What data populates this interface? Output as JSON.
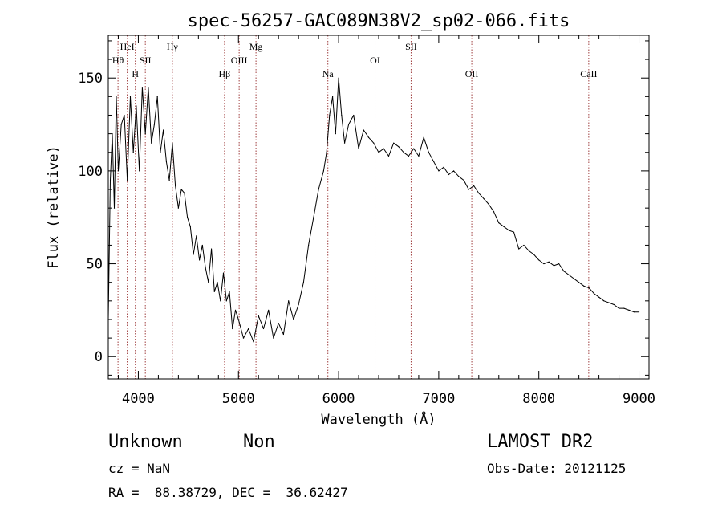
{
  "chart_data": {
    "type": "line",
    "title": "spec-56257-GAC089N38V2_sp02-066.fits",
    "xlabel": "Wavelength (Å)",
    "ylabel": "Flux (relative)",
    "xlim": [
      3700,
      9100
    ],
    "ylim": [
      -12,
      173
    ],
    "xticks": [
      4000,
      5000,
      6000,
      7000,
      8000,
      9000
    ],
    "xtick_labels": [
      "4000",
      "5000",
      "6000",
      "7000",
      "8000",
      "9000"
    ],
    "yticks": [
      0,
      50,
      100,
      150
    ],
    "ytick_labels": [
      "0",
      "50",
      "100",
      "150"
    ],
    "grid": false,
    "series": [
      {
        "color": "#000000",
        "x": [
          3700,
          3720,
          3740,
          3760,
          3780,
          3800,
          3830,
          3860,
          3890,
          3920,
          3950,
          3980,
          4010,
          4040,
          4070,
          4100,
          4130,
          4160,
          4190,
          4220,
          4250,
          4280,
          4310,
          4340,
          4370,
          4400,
          4430,
          4460,
          4490,
          4520,
          4550,
          4580,
          4610,
          4640,
          4670,
          4700,
          4730,
          4760,
          4790,
          4820,
          4850,
          4880,
          4910,
          4940,
          4970,
          5000,
          5050,
          5100,
          5150,
          5200,
          5250,
          5300,
          5350,
          5400,
          5450,
          5500,
          5550,
          5600,
          5650,
          5700,
          5750,
          5800,
          5850,
          5880,
          5910,
          5940,
          5970,
          6000,
          6030,
          6060,
          6100,
          6150,
          6200,
          6250,
          6300,
          6350,
          6400,
          6450,
          6500,
          6550,
          6600,
          6650,
          6700,
          6750,
          6800,
          6850,
          6900,
          6950,
          7000,
          7050,
          7100,
          7150,
          7200,
          7250,
          7300,
          7350,
          7400,
          7450,
          7500,
          7550,
          7600,
          7650,
          7700,
          7750,
          7800,
          7850,
          7900,
          7950,
          8000,
          8050,
          8100,
          8150,
          8200,
          8250,
          8300,
          8350,
          8400,
          8450,
          8500,
          8550,
          8600,
          8650,
          8700,
          8750,
          8800,
          8850,
          8900,
          8950,
          9000
        ],
        "y": [
          20,
          95,
          120,
          80,
          140,
          100,
          125,
          130,
          95,
          140,
          110,
          135,
          100,
          145,
          120,
          145,
          115,
          125,
          140,
          110,
          122,
          105,
          95,
          115,
          92,
          80,
          90,
          88,
          75,
          70,
          55,
          65,
          52,
          60,
          48,
          40,
          58,
          35,
          40,
          30,
          45,
          30,
          35,
          15,
          25,
          20,
          10,
          15,
          8,
          22,
          15,
          25,
          10,
          18,
          12,
          30,
          20,
          28,
          40,
          60,
          75,
          90,
          100,
          110,
          130,
          140,
          120,
          150,
          130,
          115,
          125,
          130,
          112,
          122,
          118,
          115,
          110,
          112,
          108,
          115,
          113,
          110,
          108,
          112,
          108,
          118,
          110,
          105,
          100,
          102,
          98,
          100,
          97,
          95,
          90,
          92,
          88,
          85,
          82,
          78,
          72,
          70,
          68,
          67,
          58,
          60,
          57,
          55,
          52,
          50,
          51,
          49,
          50,
          46,
          44,
          42,
          40,
          38,
          37,
          34,
          32,
          30,
          29,
          28,
          26,
          26,
          25,
          24,
          24
        ]
      }
    ],
    "lines": [
      {
        "label": "Hθ",
        "x": 3797,
        "row": 2
      },
      {
        "label": "HeI",
        "x": 3889,
        "row": 1
      },
      {
        "label": "H",
        "x": 3970,
        "row": 3
      },
      {
        "label": "SII",
        "x": 4070,
        "row": 2
      },
      {
        "label": "Hγ",
        "x": 4340,
        "row": 1
      },
      {
        "label": "Hβ",
        "x": 4861,
        "row": 3
      },
      {
        "label": "OIII",
        "x": 5007,
        "row": 2
      },
      {
        "label": "Mg",
        "x": 5175,
        "row": 1
      },
      {
        "label": "Na",
        "x": 5893,
        "row": 3
      },
      {
        "label": "OI",
        "x": 6364,
        "row": 2
      },
      {
        "label": "SII",
        "x": 6724,
        "row": 1
      },
      {
        "label": "OII",
        "x": 7330,
        "row": 3
      },
      {
        "label": "CaII",
        "x": 8498,
        "row": 3
      }
    ]
  },
  "info": {
    "class": "Unknown",
    "subclass": "Non",
    "survey": "LAMOST DR2",
    "cz": "cz = NaN",
    "obs_date": "Obs-Date: 20121125",
    "coords": "RA =  88.38729, DEC =  36.62427"
  }
}
